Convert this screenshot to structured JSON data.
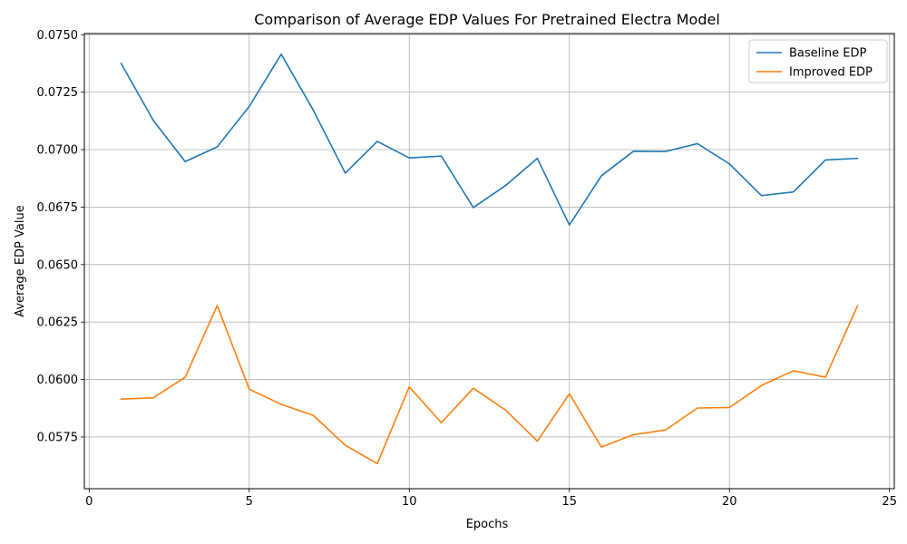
{
  "chart_data": {
    "type": "line",
    "title": "Comparison of Average EDP Values For Pretrained Electra Model",
    "xlabel": "Epochs",
    "ylabel": "Average EDP Value",
    "xlim": [
      -0.15,
      25.15
    ],
    "ylim": [
      0.05525,
      0.07505
    ],
    "xticks": [
      0,
      5,
      10,
      15,
      20,
      25
    ],
    "xtick_labels": [
      "0",
      "5",
      "10",
      "15",
      "20",
      "25"
    ],
    "yticks": [
      0.0575,
      0.06,
      0.0625,
      0.065,
      0.0675,
      0.07,
      0.0725,
      0.075
    ],
    "ytick_labels": [
      "0.0575",
      "0.0600",
      "0.0625",
      "0.0650",
      "0.0675",
      "0.0700",
      "0.0725",
      "0.0750"
    ],
    "grid": true,
    "legend_position": "top-right",
    "x": [
      1,
      2,
      3,
      4,
      5,
      6,
      7,
      8,
      9,
      10,
      11,
      12,
      13,
      14,
      15,
      16,
      17,
      18,
      19,
      20,
      21,
      22,
      23,
      24
    ],
    "series": [
      {
        "name": "Baseline EDP",
        "color": "#1f77b4",
        "values": [
          0.07375,
          0.07128,
          0.06948,
          0.07012,
          0.07188,
          0.07415,
          0.07172,
          0.06898,
          0.07036,
          0.06964,
          0.06972,
          0.06748,
          0.06843,
          0.06962,
          0.06672,
          0.06886,
          0.06993,
          0.06992,
          0.07026,
          0.06938,
          0.068,
          0.06816,
          0.06955,
          0.06962
        ]
      },
      {
        "name": "Improved EDP",
        "color": "#ff7f0e",
        "values": [
          0.05915,
          0.0592,
          0.0601,
          0.06322,
          0.05958,
          0.05892,
          0.05844,
          0.05714,
          0.05634,
          0.05968,
          0.05812,
          0.05962,
          0.05868,
          0.05732,
          0.05938,
          0.05706,
          0.0576,
          0.0578,
          0.05876,
          0.05878,
          0.05974,
          0.06038,
          0.0601,
          0.0632
        ]
      }
    ]
  }
}
